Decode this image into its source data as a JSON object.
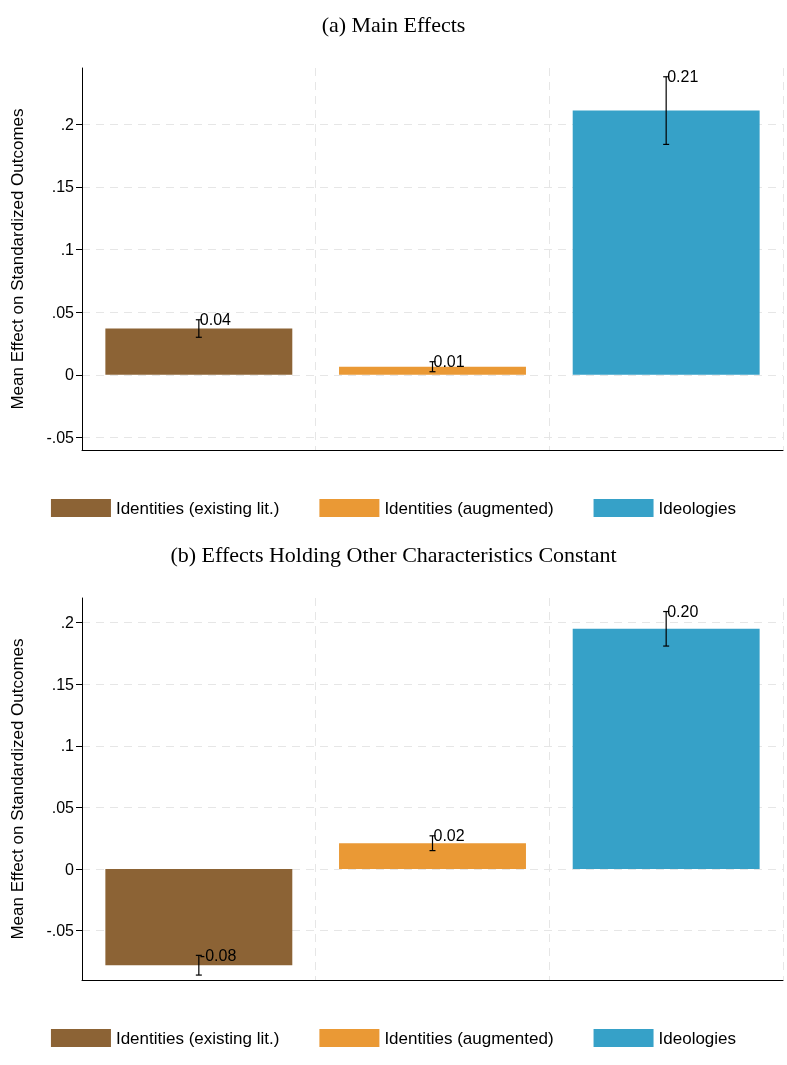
{
  "chart_data": [
    {
      "type": "bar",
      "title": "(a) Main Effects",
      "ylabel": "Mean Effect on Standardized Outcomes",
      "categories": [
        null,
        null,
        null
      ],
      "series": [
        {
          "name": "Identities (existing lit.)",
          "color": "#8c6335",
          "values": [
            0.037,
            null,
            null
          ],
          "errors": [
            0.007,
            null,
            null
          ],
          "value_labels": [
            "0.04",
            null,
            null
          ]
        },
        {
          "name": "Identities (augmented)",
          "color": "#ea9935",
          "values": [
            null,
            0.0065,
            null
          ],
          "errors": [
            null,
            0.004,
            null
          ],
          "value_labels": [
            null,
            "0.01",
            null
          ]
        },
        {
          "name": "Ideologies",
          "color": "#36a1c8",
          "values": [
            null,
            null,
            0.211
          ],
          "errors": [
            null,
            null,
            0.027
          ],
          "value_labels": [
            null,
            null,
            "0.21"
          ]
        }
      ],
      "ylim": [
        -0.06,
        0.245
      ],
      "yticks": [
        {
          "value": -0.05,
          "label": "-.05"
        },
        0,
        {
          "value": 0.05,
          "label": ".05"
        },
        {
          "value": 0.1,
          "label": ".1"
        },
        {
          "value": 0.15,
          "label": ".15"
        },
        {
          "value": 0.2,
          "label": ".2"
        }
      ],
      "grid": true,
      "legend": "bottom"
    },
    {
      "type": "bar",
      "title": "(b) Effects Holding Other Characteristics Constant",
      "ylabel": "Mean Effect on Standardized Outcomes",
      "categories": [
        null,
        null,
        null
      ],
      "series": [
        {
          "name": "Identities (existing lit.)",
          "color": "#8c6335",
          "values": [
            -0.078,
            null,
            null
          ],
          "errors": [
            0.008,
            null,
            null
          ],
          "value_labels": [
            "-0.08",
            null,
            null
          ]
        },
        {
          "name": "Identities (augmented)",
          "color": "#ea9935",
          "values": [
            null,
            0.021,
            null
          ],
          "errors": [
            null,
            0.006,
            null
          ],
          "value_labels": [
            null,
            "0.02",
            null
          ]
        },
        {
          "name": "Ideologies",
          "color": "#36a1c8",
          "values": [
            null,
            null,
            0.195
          ],
          "errors": [
            null,
            null,
            0.014
          ],
          "value_labels": [
            null,
            null,
            "0.20"
          ]
        }
      ],
      "ylim": [
        -0.09,
        0.22
      ],
      "yticks": [
        {
          "value": -0.05,
          "label": "-.05"
        },
        0,
        {
          "value": 0.05,
          "label": ".05"
        },
        {
          "value": 0.1,
          "label": ".1"
        },
        {
          "value": 0.15,
          "label": ".15"
        },
        {
          "value": 0.2,
          "label": ".2"
        }
      ],
      "grid": true,
      "legend": "bottom"
    }
  ]
}
